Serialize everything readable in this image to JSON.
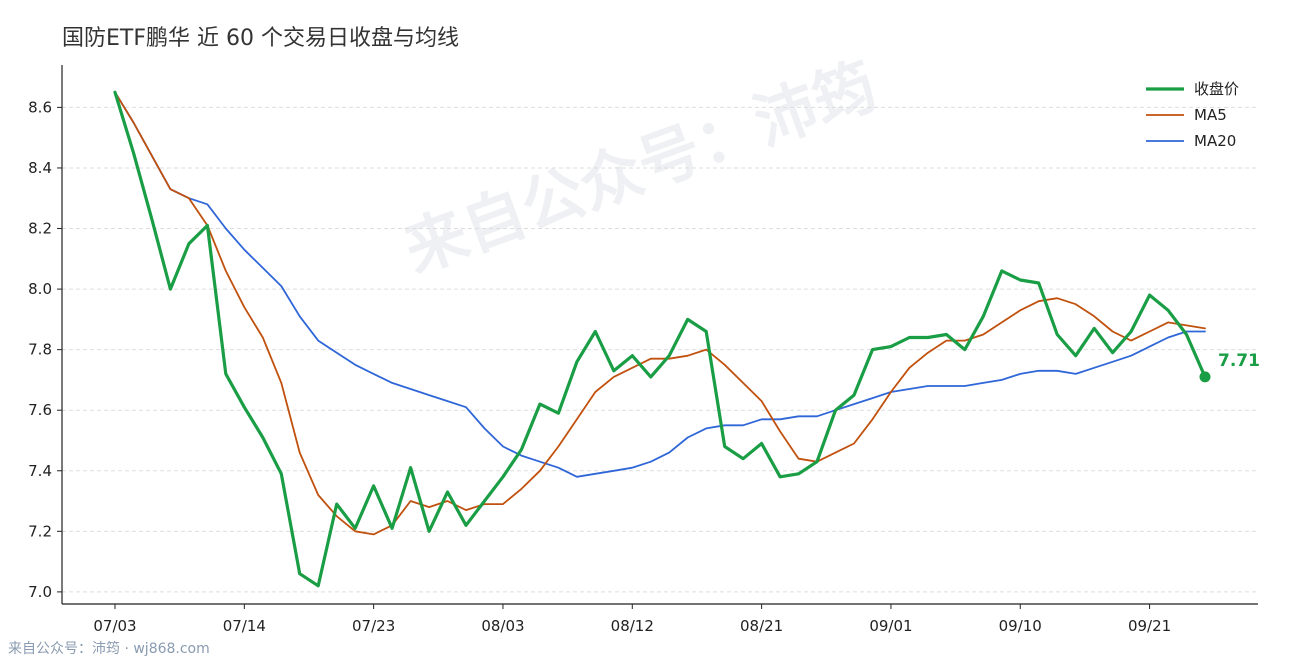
{
  "title": "国防ETF鹏华 近 60 个交易日收盘与均线",
  "footer": "来自公众号：沛筠 · wj868.com",
  "watermark": "来自公众号：沛筠",
  "colors": {
    "close": "#1a9e45",
    "ma5": "#c0510e",
    "ma20": "#2f66d8",
    "grid": "#dddddd",
    "axis": "#222222"
  },
  "chart_data": {
    "type": "line",
    "title": "国防ETF鹏华 近 60 个交易日收盘与均线",
    "xlabel": "",
    "ylabel": "",
    "ylim": [
      6.96,
      8.74
    ],
    "yticks": [
      "7.0",
      "7.2",
      "7.4",
      "7.6",
      "7.8",
      "8.0",
      "8.2",
      "8.4",
      "8.6"
    ],
    "ytick_values": [
      7.0,
      7.2,
      7.4,
      7.6,
      7.8,
      8.0,
      8.2,
      8.4,
      8.6
    ],
    "xticks": [
      "07/03",
      "07/14",
      "07/23",
      "08/03",
      "08/12",
      "08/21",
      "09/01",
      "09/10",
      "09/21"
    ],
    "xtick_index": [
      0,
      7,
      14,
      21,
      28,
      35,
      42,
      49,
      56
    ],
    "grid": "horizontal dashed",
    "legend_position": "top-right",
    "end_label": "7.71",
    "series": [
      {
        "name": "收盘价",
        "key": "close",
        "values": [
          8.65,
          8.45,
          8.23,
          8.0,
          8.15,
          8.21,
          7.72,
          7.61,
          7.51,
          7.39,
          7.06,
          7.02,
          7.29,
          7.21,
          7.35,
          7.21,
          7.41,
          7.2,
          7.33,
          7.22,
          7.3,
          7.38,
          7.47,
          7.62,
          7.59,
          7.76,
          7.86,
          7.73,
          7.78,
          7.71,
          7.78,
          7.9,
          7.86,
          7.48,
          7.44,
          7.49,
          7.38,
          7.39,
          7.43,
          7.6,
          7.65,
          7.8,
          7.81,
          7.84,
          7.84,
          7.85,
          7.8,
          7.91,
          8.06,
          8.03,
          8.02,
          7.85,
          7.78,
          7.87,
          7.79,
          7.86,
          7.98,
          7.93,
          7.85,
          7.71
        ]
      },
      {
        "name": "MA5",
        "key": "ma5",
        "values": [
          8.65,
          8.55,
          8.44,
          8.33,
          8.3,
          8.21,
          8.06,
          7.94,
          7.84,
          7.69,
          7.46,
          7.32,
          7.25,
          7.2,
          7.19,
          7.22,
          7.3,
          7.28,
          7.3,
          7.27,
          7.29,
          7.29,
          7.34,
          7.4,
          7.48,
          7.57,
          7.66,
          7.71,
          7.74,
          7.77,
          7.77,
          7.78,
          7.8,
          7.75,
          7.69,
          7.63,
          7.53,
          7.44,
          7.43,
          7.46,
          7.49,
          7.57,
          7.66,
          7.74,
          7.79,
          7.83,
          7.83,
          7.85,
          7.89,
          7.93,
          7.96,
          7.97,
          7.95,
          7.91,
          7.86,
          7.83,
          7.86,
          7.89,
          7.88,
          7.87
        ]
      },
      {
        "name": "MA20",
        "key": "ma20",
        "values": [
          8.65,
          8.55,
          8.44,
          8.33,
          8.3,
          8.28,
          8.2,
          8.13,
          8.07,
          8.01,
          7.91,
          7.83,
          7.79,
          7.75,
          7.72,
          7.69,
          7.67,
          7.65,
          7.63,
          7.61,
          7.54,
          7.48,
          7.45,
          7.43,
          7.41,
          7.38,
          7.39,
          7.4,
          7.41,
          7.43,
          7.46,
          7.51,
          7.54,
          7.55,
          7.55,
          7.57,
          7.57,
          7.58,
          7.58,
          7.6,
          7.62,
          7.64,
          7.66,
          7.67,
          7.68,
          7.68,
          7.68,
          7.69,
          7.7,
          7.72,
          7.73,
          7.73,
          7.72,
          7.74,
          7.76,
          7.78,
          7.81,
          7.84,
          7.86,
          7.86
        ]
      }
    ]
  }
}
